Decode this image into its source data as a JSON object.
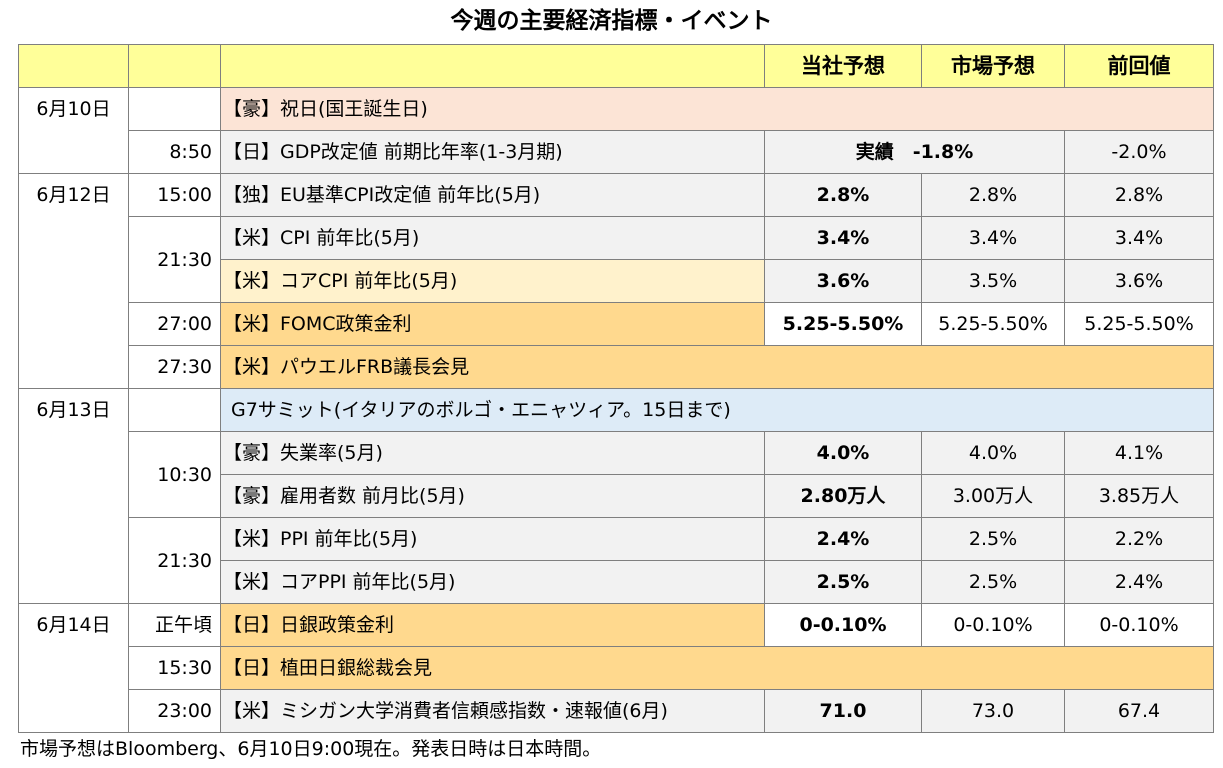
{
  "title": "今週の主要経済指標・イベント",
  "header": {
    "own": "当社予想",
    "market": "市場予想",
    "previous": "前回値"
  },
  "rows": [
    {
      "date": "6月10日",
      "time": "",
      "event": "【豪】祝日(国王誕生日)"
    },
    {
      "date": "",
      "time": "8:50",
      "event": "【日】GDP改定値 前期比年率(1-3月期)",
      "actual": "実績　-1.8%",
      "previous": "-2.0%"
    },
    {
      "date": "6月12日",
      "time": "15:00",
      "event": "【独】EU基準CPI改定値 前年比(5月)",
      "own": "2.8%",
      "market": "2.8%",
      "previous": "2.8%"
    },
    {
      "date": "",
      "time": "21:30",
      "event": "【米】CPI 前年比(5月)",
      "own": "3.4%",
      "market": "3.4%",
      "previous": "3.4%"
    },
    {
      "date": "",
      "time": "",
      "event": "【米】コアCPI 前年比(5月)",
      "own": "3.6%",
      "market": "3.5%",
      "previous": "3.6%"
    },
    {
      "date": "",
      "time": "27:00",
      "event": "【米】FOMC政策金利",
      "own": "5.25-5.50%",
      "market": "5.25-5.50%",
      "previous": "5.25-5.50%"
    },
    {
      "date": "",
      "time": "27:30",
      "event": "【米】パウエルFRB議長会見"
    },
    {
      "date": "6月13日",
      "time": "",
      "event": "G7サミット(イタリアのボルゴ・エニャツィア。15日まで)"
    },
    {
      "date": "",
      "time": "10:30",
      "event": "【豪】失業率(5月)",
      "own": "4.0%",
      "market": "4.0%",
      "previous": "4.1%"
    },
    {
      "date": "",
      "time": "",
      "event": "【豪】雇用者数 前月比(5月)",
      "own": "2.80万人",
      "market": "3.00万人",
      "previous": "3.85万人"
    },
    {
      "date": "",
      "time": "21:30",
      "event": "【米】PPI 前年比(5月)",
      "own": "2.4%",
      "market": "2.5%",
      "previous": "2.2%"
    },
    {
      "date": "",
      "time": "",
      "event": "【米】コアPPI 前年比(5月)",
      "own": "2.5%",
      "market": "2.5%",
      "previous": "2.4%"
    },
    {
      "date": "6月14日",
      "time": "正午頃",
      "event": "【日】日銀政策金利",
      "own": "0-0.10%",
      "market": "0-0.10%",
      "previous": "0-0.10%"
    },
    {
      "date": "",
      "time": "15:30",
      "event": "【日】植田日銀総裁会見"
    },
    {
      "date": "",
      "time": "23:00",
      "event": "【米】ミシガン大学消費者信頼感指数・速報値(6月)",
      "own": "71.0",
      "market": "73.0",
      "previous": "67.4"
    }
  ],
  "footer": "市場予想はBloomberg、6月10日9:00現在。発表日時は日本時間。"
}
